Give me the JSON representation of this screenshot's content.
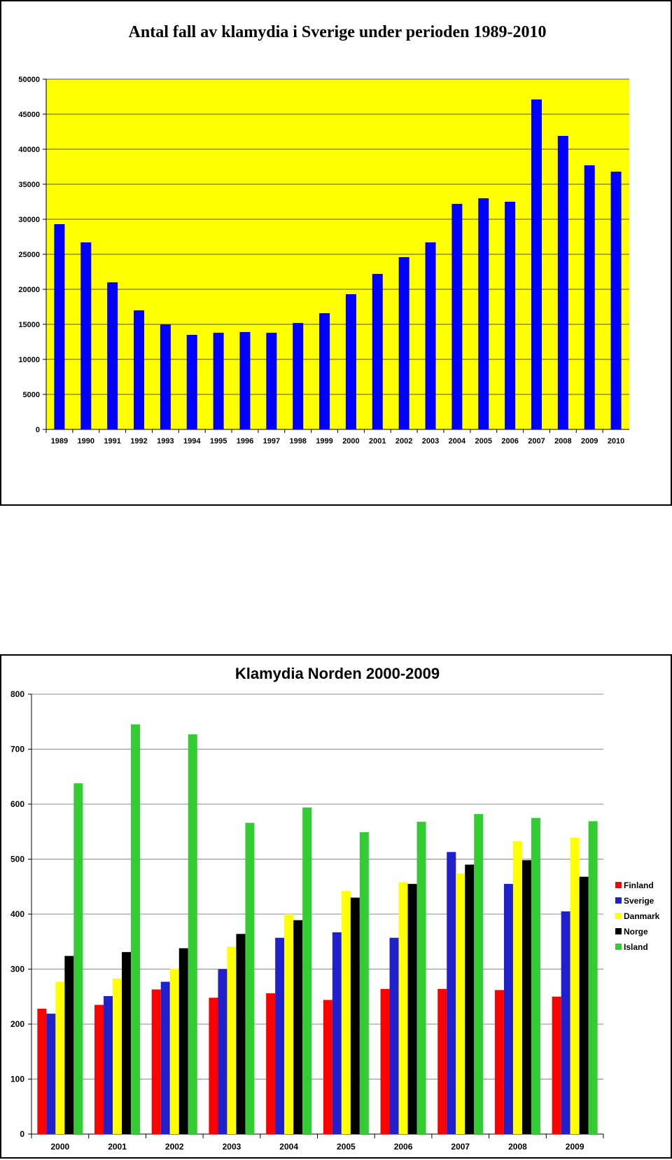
{
  "chart_data": [
    {
      "type": "bar",
      "title": "Antal fall av klamydia i Sverige under perioden 1989-2010",
      "xlabel": "",
      "ylabel": "",
      "ylim": [
        0,
        50000
      ],
      "yticks": [
        "0",
        "5000",
        "10000",
        "15000",
        "20000",
        "25000",
        "30000",
        "35000",
        "40000",
        "45000",
        "50000"
      ],
      "grid": true,
      "background_color": "#ffff00",
      "bar_color": "#0000ff",
      "categories": [
        "1989",
        "1990",
        "1991",
        "1992",
        "1993",
        "1994",
        "1995",
        "1996",
        "1997",
        "1998",
        "1999",
        "2000",
        "2001",
        "2002",
        "2003",
        "2004",
        "2005",
        "2006",
        "2007",
        "2008",
        "2009",
        "2010"
      ],
      "values": [
        29300,
        26700,
        21000,
        17000,
        15000,
        13500,
        13800,
        13900,
        13800,
        15200,
        16600,
        19300,
        22200,
        24600,
        26700,
        32200,
        33000,
        32500,
        47100,
        41900,
        37700,
        36800
      ]
    },
    {
      "type": "bar",
      "title": "Klamydia Norden 2000-2009",
      "xlabel": "",
      "ylabel": "",
      "ylim": [
        0,
        800
      ],
      "yticks": [
        "0",
        "100",
        "200",
        "300",
        "400",
        "500",
        "600",
        "700",
        "800"
      ],
      "grid": true,
      "legend_position": "right",
      "categories": [
        "2000",
        "2001",
        "2002",
        "2003",
        "2004",
        "2005",
        "2006",
        "2007",
        "2008",
        "2009"
      ],
      "series": [
        {
          "name": "Finland",
          "color": "#ff0000",
          "values": [
            228,
            235,
            263,
            248,
            256,
            244,
            264,
            264,
            262,
            250
          ]
        },
        {
          "name": "Sverige",
          "color": "#2020cc",
          "values": [
            219,
            251,
            277,
            300,
            357,
            367,
            357,
            513,
            455,
            405
          ]
        },
        {
          "name": "Danmark",
          "color": "#ffff00",
          "values": [
            277,
            283,
            301,
            341,
            400,
            442,
            458,
            474,
            533,
            539
          ]
        },
        {
          "name": "Norge",
          "color": "#000000",
          "values": [
            324,
            331,
            338,
            364,
            389,
            430,
            455,
            490,
            498,
            468
          ]
        },
        {
          "name": "Island",
          "color": "#33cc33",
          "values": [
            638,
            745,
            727,
            566,
            594,
            549,
            568,
            582,
            575,
            569
          ]
        }
      ]
    }
  ]
}
